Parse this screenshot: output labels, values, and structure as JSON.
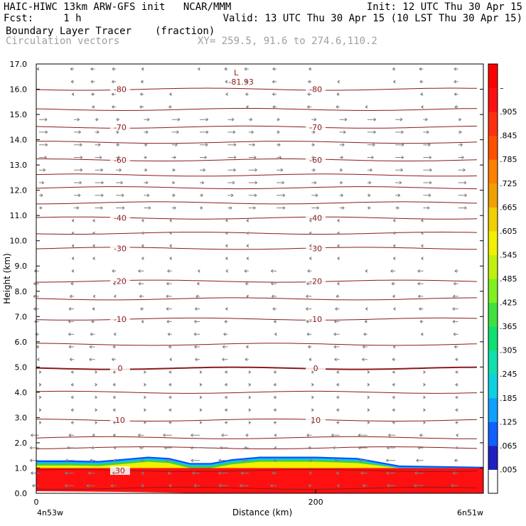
{
  "header": {
    "line1_left": "HAIC-HIWC 13km ARW-GFS init   NCAR/MMM",
    "line1_right": "Init: 12 UTC Thu 30 Apr 15",
    "line2_left": "Fcst:     1 h",
    "line2_right": "Valid: 13 UTC Thu 30 Apr 15 (10 LST Thu 30 Apr 15)",
    "line3_left": "Boundary Layer Tracer",
    "line3_units": "(fraction)",
    "line4_left": "Circulation vectors",
    "line4_xy": "XY= 259.5, 91.6 to 274.6,110.2"
  },
  "colors": {
    "contour": "#8b1a1a",
    "vector": "#808080",
    "tracer_main": "#ff1010",
    "tracer_edge_green": "#40d040",
    "tracer_edge_blue": "#0050ff"
  },
  "chart_data": {
    "type": "heatmap",
    "title": "Boundary Layer Tracer",
    "units": "(fraction)",
    "overlay": "Circulation vectors",
    "xlabel": "Distance (km)",
    "ylabel": "Height (km)",
    "xlim": [
      0,
      320
    ],
    "ylim": [
      0,
      17
    ],
    "x_ticks": [
      0,
      200
    ],
    "x_tick_labels": [
      "0",
      "200"
    ],
    "x_endpoint_labels": [
      "4n53w",
      "6n51w"
    ],
    "y_ticks": [
      0,
      1,
      2,
      3,
      4,
      5,
      6,
      7,
      8,
      9,
      10,
      11,
      12,
      13,
      14,
      15,
      16,
      17
    ],
    "y_tick_labels": [
      "0.0",
      "1.0",
      "2.0",
      "3.0",
      "4.0",
      "5.0",
      "6.0",
      "7.0",
      "8.0",
      "9.0",
      "10.0",
      "11.0",
      "12.0",
      "13.0",
      "14.0",
      "15.0",
      "16.0",
      "17.0"
    ],
    "tracer_layer_top_km": [
      [
        0,
        1.3
      ],
      [
        25,
        1.3
      ],
      [
        45,
        1.28
      ],
      [
        60,
        1.35
      ],
      [
        80,
        1.45
      ],
      [
        95,
        1.4
      ],
      [
        110,
        1.2
      ],
      [
        125,
        1.2
      ],
      [
        140,
        1.35
      ],
      [
        160,
        1.45
      ],
      [
        200,
        1.45
      ],
      [
        230,
        1.4
      ],
      [
        260,
        1.1
      ],
      [
        320,
        1.05
      ]
    ],
    "tracer_red_top_km": 1.0,
    "temperature_contours": [
      {
        "label": "30",
        "height_km": 0.9,
        "left_label_x": 60,
        "right_label_x": null
      },
      {
        "label": "10",
        "height_km": 2.9,
        "left_label_x": 60,
        "right_label_x": 200
      },
      {
        "label": "0",
        "height_km": 4.95,
        "left_label_x": 60,
        "right_label_x": 200
      },
      {
        "label": "-10",
        "height_km": 6.9,
        "left_label_x": 60,
        "right_label_x": 200
      },
      {
        "label": "-20",
        "height_km": 8.4,
        "left_label_x": 60,
        "right_label_x": 200
      },
      {
        "label": "-30",
        "height_km": 9.7,
        "left_label_x": 60,
        "right_label_x": 200
      },
      {
        "label": "-40",
        "height_km": 10.9,
        "left_label_x": 60,
        "right_label_x": 200
      },
      {
        "label": "-60",
        "height_km": 13.2,
        "left_label_x": 60,
        "right_label_x": 200
      },
      {
        "label": "-70",
        "height_km": 14.5,
        "left_label_x": 60,
        "right_label_x": 200
      },
      {
        "label": "-80",
        "height_km": 16.0,
        "left_label_x": 60,
        "right_label_x": 200
      }
    ],
    "unlabeled_contour_heights_km": [
      0.2,
      1.8,
      2.2,
      4.0,
      5.9,
      7.7,
      10.3,
      11.5,
      12.1,
      12.6,
      13.9,
      15.2
    ],
    "min_marker": {
      "label": "L",
      "value": "-81.93",
      "x": 140,
      "height_km": 16.6
    },
    "colorbar": {
      "tick_labels": [
        ".005",
        ".065",
        ".125",
        ".185",
        ".245",
        ".305",
        ".365",
        ".425",
        ".485",
        ".545",
        ".605",
        ".665",
        ".725",
        ".785",
        ".845",
        ".905",
        "–"
      ],
      "colors": [
        "#ffffff",
        "#2020c0",
        "#1060ff",
        "#10a0ff",
        "#10d0e0",
        "#10e0b0",
        "#10e070",
        "#40e040",
        "#80f020",
        "#c0f010",
        "#f0f000",
        "#f0d000",
        "#f0a000",
        "#ff8000",
        "#ff5000",
        "#ff3010",
        "#ff1010",
        "#ff0000"
      ]
    }
  }
}
